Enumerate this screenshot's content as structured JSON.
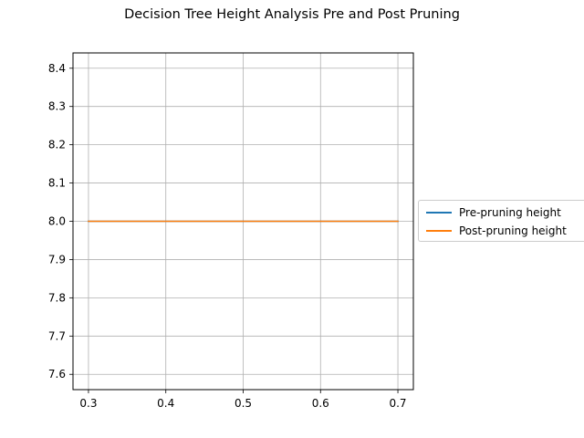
{
  "figure": {
    "title": "Decision Tree Height Analysis Pre and Post Pruning"
  },
  "chart_data": {
    "type": "line",
    "title": "Decision Tree Height Analysis Pre and Post Pruning",
    "xlabel": "",
    "ylabel": "",
    "x": [
      0.3,
      0.4,
      0.5,
      0.6,
      0.7
    ],
    "xlim": [
      0.28,
      0.72
    ],
    "ylim": [
      7.56,
      8.44
    ],
    "xticks": [
      "0.3",
      "0.4",
      "0.5",
      "0.6",
      "0.7"
    ],
    "yticks": [
      "7.6",
      "7.7",
      "7.8",
      "7.9",
      "8.0",
      "8.1",
      "8.2",
      "8.3",
      "8.4"
    ],
    "grid": true,
    "legend_position": "right, outside plot",
    "series": [
      {
        "name": "Pre-pruning height",
        "color": "#1f77b4",
        "values": [
          8.0,
          8.0,
          8.0,
          8.0,
          8.0
        ]
      },
      {
        "name": "Post-pruning height",
        "color": "#ff7f0e",
        "values": [
          8.0,
          8.0,
          8.0,
          8.0,
          8.0
        ]
      }
    ]
  }
}
